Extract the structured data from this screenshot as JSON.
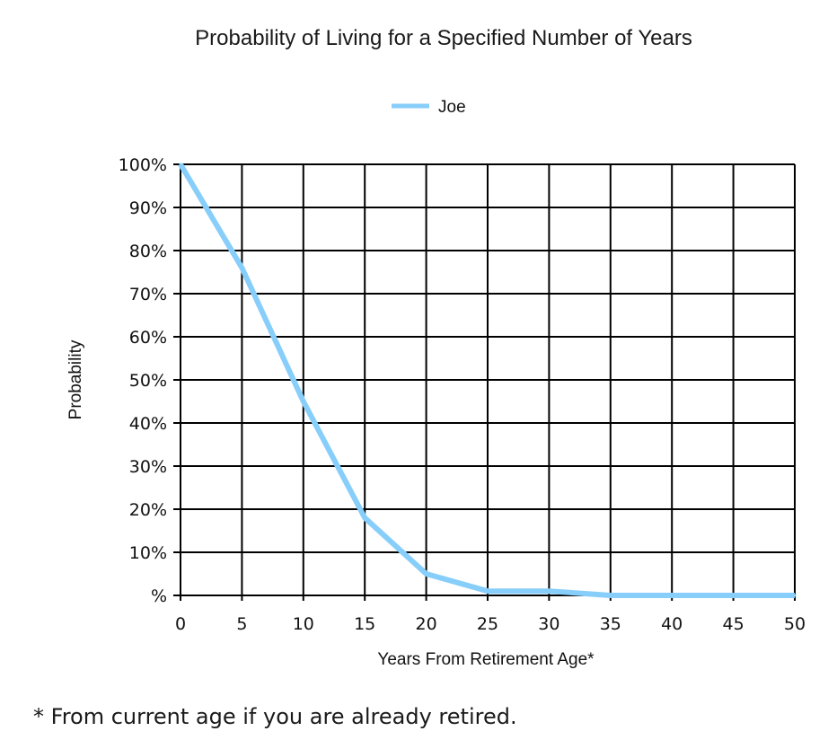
{
  "chart_data": {
    "type": "line",
    "title": "Probability of Living for a Specified Number of Years",
    "xlabel": "Years From Retirement Age*",
    "ylabel": "Probability",
    "x_ticks": [
      "0",
      "5",
      "10",
      "15",
      "20",
      "25",
      "30",
      "35",
      "40",
      "45",
      "50"
    ],
    "y_ticks": [
      "%",
      "10%",
      "20%",
      "30%",
      "40%",
      "50%",
      "60%",
      "70%",
      "80%",
      "90%",
      "100%"
    ],
    "xlim": [
      0,
      50
    ],
    "ylim": [
      0,
      100
    ],
    "grid": true,
    "legend": "top-center",
    "series": [
      {
        "name": "Joe",
        "color": "#87cefa",
        "x": [
          0,
          5,
          10,
          15,
          20,
          25,
          30,
          35,
          40,
          45,
          50
        ],
        "y": [
          100,
          76,
          45,
          18,
          5,
          1,
          1,
          0,
          0,
          0,
          0
        ]
      }
    ]
  },
  "footnote": "* From current age if you are already retired."
}
